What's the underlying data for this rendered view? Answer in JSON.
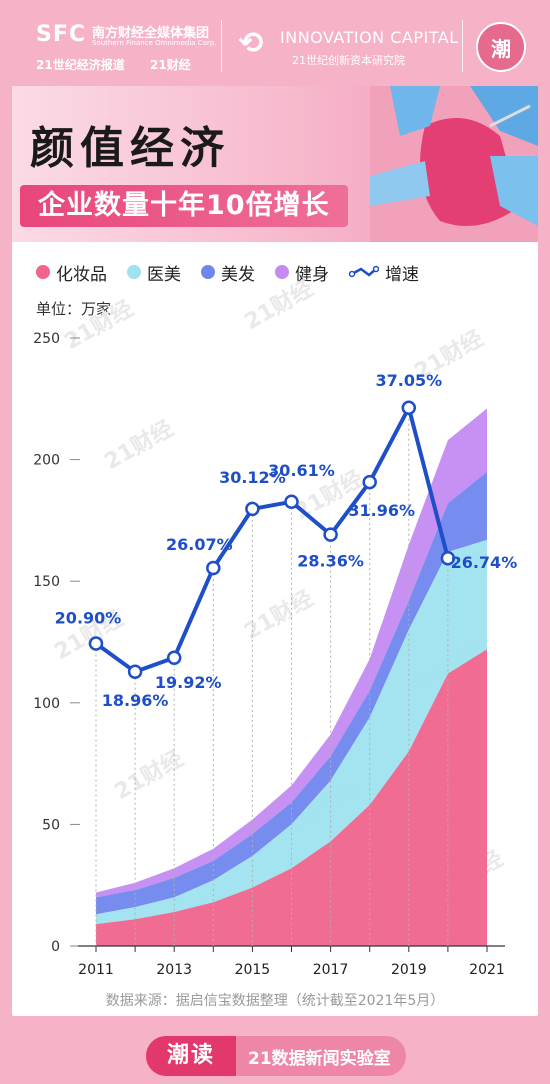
{
  "header": {
    "sfc": "SFC",
    "group_cn": "南方财经全媒体集团",
    "group_en": "Southern Finance Omnimedia Corp.",
    "paper_cn": "21世纪经济报道",
    "paper_b": "21财经",
    "innovation_en": "INNOVATION CAPITAL",
    "innovation_cn": "21世纪创新资本研究院",
    "badge": "潮"
  },
  "title": {
    "main": "颜值经济",
    "sub": "企业数量十年10倍增长"
  },
  "unit": "单位：万家",
  "legend": [
    {
      "label": "化妆品",
      "color": "#f0648d"
    },
    {
      "label": "医美",
      "color": "#9fe3f0"
    },
    {
      "label": "美发",
      "color": "#6f86ee"
    },
    {
      "label": "健身",
      "color": "#c48af2"
    },
    {
      "label": "增速",
      "color": "#1f4fc8"
    }
  ],
  "watermark": "21财经",
  "chart_data": {
    "type": "area",
    "x": [
      2011,
      2012,
      2013,
      2014,
      2015,
      2016,
      2017,
      2018,
      2019,
      2020,
      2021
    ],
    "x_ticks": [
      2011,
      2013,
      2015,
      2017,
      2019,
      2021
    ],
    "y_ticks": [
      0,
      50,
      100,
      150,
      200,
      250
    ],
    "ylim": [
      0,
      250
    ],
    "ylabel": "单位：万家",
    "series": [
      {
        "name": "化妆品",
        "color": "#f0648d",
        "values": [
          9,
          11,
          14,
          18,
          24,
          32,
          43,
          58,
          80,
          112,
          122
        ]
      },
      {
        "name": "医美",
        "color": "#9fe3f0",
        "values": [
          4,
          5,
          6,
          9,
          13,
          18,
          25,
          36,
          50,
          50,
          45
        ]
      },
      {
        "name": "美发",
        "color": "#6f86ee",
        "values": [
          7,
          7,
          8,
          8,
          9,
          9,
          10,
          11,
          12,
          20,
          28
        ]
      },
      {
        "name": "健身",
        "color": "#c48af2",
        "values": [
          2,
          3,
          4,
          5,
          6,
          7,
          9,
          13,
          23,
          26,
          26
        ]
      }
    ],
    "growth": {
      "name": "增速",
      "color": "#1f4fc8",
      "values": [
        20.9,
        18.96,
        19.92,
        26.07,
        30.12,
        30.61,
        28.36,
        31.96,
        37.05,
        26.74
      ],
      "x": [
        2011,
        2012,
        2013,
        2014,
        2015,
        2016,
        2017,
        2018,
        2019,
        2020
      ],
      "labels": [
        "20.90%",
        "18.96%",
        "19.92%",
        "26.07%",
        "30.12%",
        "30.61%",
        "28.36%",
        "31.96%",
        "37.05%",
        "26.74%"
      ]
    }
  },
  "source": "数据来源：据启信宝数据整理（统计截至2021年5月）",
  "footer": {
    "logo": "潮读",
    "text": "21数据新闻实验室"
  }
}
